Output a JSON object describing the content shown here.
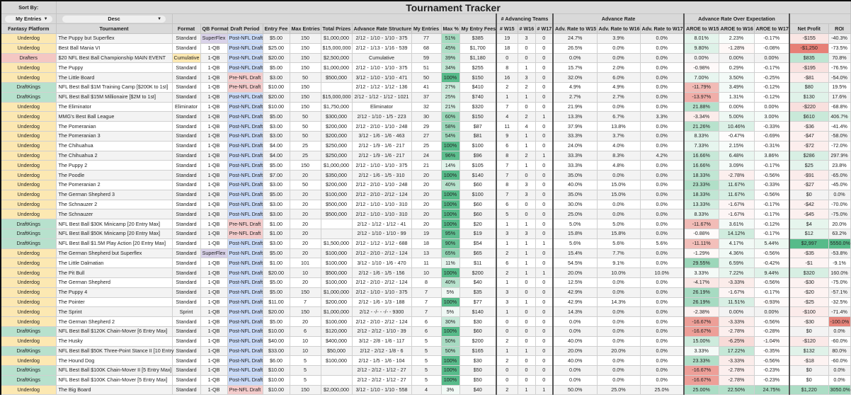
{
  "title": "Tournament Tracker",
  "sort": {
    "label": "Sort By:",
    "field": "My Entries",
    "order": "Desc"
  },
  "groups": {
    "advancing_teams": "# Advancing Teams",
    "advance_rate": "Advance Rate",
    "aroe": "Advance Rate Over Expectation"
  },
  "columns": [
    "Fantasy Platform",
    "Tournament",
    "Format",
    "QB Format",
    "Draft Period",
    "Entry Fee",
    "Max Entries",
    "Total Prizes",
    "Advance Rate Structure",
    "My Entries",
    "Max %",
    "My Entry Fees",
    "# W15",
    "# W16",
    "# W17",
    "Adv. Rate to W15",
    "Adv. Rate to W16",
    "Adv. Rate to W17",
    "AROE to W15",
    "AROE to W16",
    "AROE to W17",
    "Net Profit",
    "ROI"
  ],
  "colors": {
    "underdog": "#fce8b2",
    "draftkings": "#b7e1cd",
    "drafters": "#f4c7c3",
    "superflex": "#d9d2e9",
    "post_nfl": "#c9daf8",
    "pre_nfl": "#f4cccc",
    "cumulative": "#fce8b2",
    "positive": "#57bb8a",
    "negative": "#e67c73"
  },
  "rows": [
    [
      "Underdog",
      "The Puppy but Superflex",
      "Standard",
      "SuperFlex",
      "Post-NFL Draft",
      "$5.00",
      "150",
      "$1,000,000",
      "2/12 - 1/10 - 1/10 - 375",
      "77",
      "51%",
      "$385",
      "19",
      "3",
      "0",
      "24.7%",
      "3.9%",
      "0.0%",
      "8.01%",
      "2.23%",
      "-0.17%",
      "-$155",
      "-40.3%"
    ],
    [
      "Underdog",
      "Best Ball Mania VI",
      "Standard",
      "1-QB",
      "Post-NFL Draft",
      "$25.00",
      "150",
      "$15,000,000",
      "2/12 - 1/13 - 1/16 - 539",
      "68",
      "45%",
      "$1,700",
      "18",
      "0",
      "0",
      "26.5%",
      "0.0%",
      "0.0%",
      "9.80%",
      "-1.28%",
      "-0.08%",
      "-$1,250",
      "-73.5%"
    ],
    [
      "Drafters",
      "$20 NFL Best Ball Championship MAIN EVENT",
      "Cumulative",
      "1-QB",
      "Post-NFL Draft",
      "$20.00",
      "150",
      "$2,500,000",
      "Cumulative",
      "59",
      "39%",
      "$1,180",
      "0",
      "0",
      "0",
      "0.0%",
      "0.0%",
      "0.0%",
      "0.00%",
      "0.00%",
      "0.00%",
      "$835",
      "70.8%"
    ],
    [
      "Underdog",
      "The Puppy",
      "Standard",
      "1-QB",
      "Post-NFL Draft",
      "$5.00",
      "150",
      "$1,000,000",
      "2/12 - 1/10 - 1/10 - 375",
      "51",
      "34%",
      "$255",
      "8",
      "1",
      "0",
      "15.7%",
      "2.0%",
      "0.0%",
      "-0.98%",
      "0.29%",
      "-0.17%",
      "-$195",
      "-76.5%"
    ],
    [
      "Underdog",
      "The Little Board",
      "Standard",
      "1-QB",
      "Pre-NFL Draft",
      "$3.00",
      "50",
      "$500,000",
      "3/12 - 1/10 - 1/10 - 471",
      "50",
      "100%",
      "$150",
      "16",
      "3",
      "0",
      "32.0%",
      "6.0%",
      "0.0%",
      "7.00%",
      "3.50%",
      "-0.25%",
      "-$81",
      "-54.0%"
    ],
    [
      "DraftKings",
      "NFL Best Ball $1M Training Camp [$200K to 1st]",
      "Standard",
      "1-QB",
      "Pre-NFL Draft",
      "$10.00",
      "150",
      "",
      "2/12 - 1/12 - 1/12 - 136",
      "41",
      "27%",
      "$410",
      "2",
      "2",
      "0",
      "4.9%",
      "4.9%",
      "0.0%",
      "-11.79%",
      "3.49%",
      "-0.12%",
      "$80",
      "19.5%"
    ],
    [
      "DraftKings",
      "NFL Best Ball $15M Millionaire [$2M to 1st]",
      "Standard",
      "1-QB",
      "Post-NFL Draft",
      "$20.00",
      "150",
      "$15,000,000",
      "2/12 - 1/12 - 1/12 - 1021",
      "37",
      "25%",
      "$740",
      "1",
      "1",
      "0",
      "2.7%",
      "2.7%",
      "0.0%",
      "-13.97%",
      "1.31%",
      "-0.12%",
      "$130",
      "17.6%"
    ],
    [
      "Underdog",
      "The Eliminator",
      "Eliminator",
      "1-QB",
      "Post-NFL Draft",
      "$10.00",
      "150",
      "$1,750,000",
      "Eliminator",
      "32",
      "21%",
      "$320",
      "7",
      "0",
      "0",
      "21.9%",
      "0.0%",
      "0.0%",
      "21.88%",
      "0.00%",
      "0.00%",
      "-$220",
      "-68.8%"
    ],
    [
      "Underdog",
      "MMG's Best Ball League",
      "Standard",
      "1-QB",
      "Post-NFL Draft",
      "$5.00",
      "50",
      "$300,000",
      "2/12 - 1/10 - 1/5 - 223",
      "30",
      "60%",
      "$150",
      "4",
      "2",
      "1",
      "13.3%",
      "6.7%",
      "3.3%",
      "-3.34%",
      "5.00%",
      "3.00%",
      "$610",
      "406.7%"
    ],
    [
      "Underdog",
      "The Pomeranian",
      "Standard",
      "1-QB",
      "Post-NFL Draft",
      "$3.00",
      "50",
      "$200,000",
      "2/12 - 2/10 - 1/10 - 248",
      "29",
      "58%",
      "$87",
      "11",
      "4",
      "0",
      "37.9%",
      "13.8%",
      "0.0%",
      "21.26%",
      "10.46%",
      "-0.33%",
      "-$36",
      "-41.4%"
    ],
    [
      "Underdog",
      "The Pomeranian 3",
      "Standard",
      "1-QB",
      "Post-NFL Draft",
      "$3.00",
      "50",
      "$200,000",
      "3/12 - 1/6 - 1/6 - 463",
      "27",
      "54%",
      "$81",
      "9",
      "1",
      "0",
      "33.3%",
      "3.7%",
      "0.0%",
      "8.33%",
      "-0.47%",
      "-0.69%",
      "-$47",
      "-58.0%"
    ],
    [
      "Underdog",
      "The Chihuahua",
      "Standard",
      "1-QB",
      "Post-NFL Draft",
      "$4.00",
      "25",
      "$250,000",
      "2/12 - 1/9 - 1/6 - 217",
      "25",
      "100%",
      "$100",
      "6",
      "1",
      "0",
      "24.0%",
      "4.0%",
      "0.0%",
      "7.33%",
      "2.15%",
      "-0.31%",
      "-$72",
      "-72.0%"
    ],
    [
      "Underdog",
      "The Chihuahua 2",
      "Standard",
      "1-QB",
      "Post-NFL Draft",
      "$4.00",
      "25",
      "$250,000",
      "2/12 - 1/9 - 1/6 - 217",
      "24",
      "96%",
      "$96",
      "8",
      "2",
      "1",
      "33.3%",
      "8.3%",
      "4.2%",
      "16.66%",
      "6.48%",
      "3.86%",
      "$286",
      "297.9%"
    ],
    [
      "Underdog",
      "The Puppy 2",
      "Standard",
      "1-QB",
      "Post-NFL Draft",
      "$5.00",
      "150",
      "$1,000,000",
      "2/12 - 1/10 - 1/10 - 375",
      "21",
      "14%",
      "$105",
      "7",
      "1",
      "0",
      "33.3%",
      "4.8%",
      "0.0%",
      "16.66%",
      "3.09%",
      "-0.17%",
      "$25",
      "23.8%"
    ],
    [
      "Underdog",
      "The Poodle",
      "Standard",
      "1-QB",
      "Post-NFL Draft",
      "$7.00",
      "20",
      "$350,000",
      "2/12 - 1/6 - 1/5 - 310",
      "20",
      "100%",
      "$140",
      "7",
      "0",
      "0",
      "35.0%",
      "0.0%",
      "0.0%",
      "18.33%",
      "-2.78%",
      "-0.56%",
      "-$91",
      "-65.0%"
    ],
    [
      "Underdog",
      "The Pomeranian 2",
      "Standard",
      "1-QB",
      "Post-NFL Draft",
      "$3.00",
      "50",
      "$200,000",
      "2/12 - 2/10 - 1/10 - 248",
      "20",
      "40%",
      "$60",
      "8",
      "3",
      "0",
      "40.0%",
      "15.0%",
      "0.0%",
      "23.33%",
      "11.67%",
      "-0.33%",
      "-$27",
      "-45.0%"
    ],
    [
      "Underdog",
      "The German Shepherd 3",
      "Standard",
      "1-QB",
      "Post-NFL Draft",
      "$5.00",
      "20",
      "$100,000",
      "2/12 - 2/10 - 2/12 - 124",
      "20",
      "100%",
      "$100",
      "7",
      "3",
      "0",
      "35.0%",
      "15.0%",
      "0.0%",
      "18.33%",
      "11.67%",
      "-0.56%",
      "$0",
      "0.0%"
    ],
    [
      "Underdog",
      "The Schnauzer 2",
      "Standard",
      "1-QB",
      "Post-NFL Draft",
      "$3.00",
      "20",
      "$500,000",
      "2/12 - 1/10 - 1/10 - 310",
      "20",
      "100%",
      "$60",
      "6",
      "0",
      "0",
      "30.0%",
      "0.0%",
      "0.0%",
      "13.33%",
      "-1.67%",
      "-0.17%",
      "-$42",
      "-70.0%"
    ],
    [
      "Underdog",
      "The Schnauzer",
      "Standard",
      "1-QB",
      "Post-NFL Draft",
      "$3.00",
      "20",
      "$500,000",
      "2/12 - 1/10 - 1/10 - 310",
      "20",
      "100%",
      "$60",
      "5",
      "0",
      "0",
      "25.0%",
      "0.0%",
      "0.0%",
      "8.33%",
      "-1.67%",
      "-0.17%",
      "-$45",
      "-75.0%"
    ],
    [
      "DraftKings",
      "NFL Best Ball $30K Minicamp [20 Entry Max]",
      "Standard",
      "1-QB",
      "Pre-NFL Draft",
      "$1.00",
      "20",
      "",
      "2/12 - 1/12 - 1/12 - 41",
      "20",
      "100%",
      "$20",
      "1",
      "1",
      "0",
      "5.0%",
      "5.0%",
      "0.0%",
      "-11.67%",
      "3.61%",
      "-0.12%",
      "$4",
      "20.0%"
    ],
    [
      "DraftKings",
      "NFL Best Ball $50K Minicamp [20 Entry Max]",
      "Standard",
      "1-QB",
      "Pre-NFL Draft",
      "$1.00",
      "20",
      "",
      "2/12 - 1/10 - 1/10 - 99",
      "19",
      "95%",
      "$19",
      "3",
      "3",
      "0",
      "15.8%",
      "15.8%",
      "0.0%",
      "-0.88%",
      "14.12%",
      "-0.17%",
      "$12",
      "63.2%"
    ],
    [
      "DraftKings",
      "NFL Best Ball $1.5M Play Action [20 Entry Max]",
      "Standard",
      "1-QB",
      "Post-NFL Draft",
      "$3.00",
      "20",
      "$1,500,000",
      "2/12 - 1/12 - 1/12 - 688",
      "18",
      "90%",
      "$54",
      "1",
      "1",
      "1",
      "5.6%",
      "5.6%",
      "5.6%",
      "-11.11%",
      "4.17%",
      "5.44%",
      "$2,997",
      "5550.0%"
    ],
    [
      "Underdog",
      "The German Shepherd but Superflex",
      "Standard",
      "SuperFlex",
      "Post-NFL Draft",
      "$5.00",
      "20",
      "$100,000",
      "2/12 - 2/10 - 2/12 - 124",
      "13",
      "65%",
      "$65",
      "2",
      "1",
      "0",
      "15.4%",
      "7.7%",
      "0.0%",
      "-1.29%",
      "4.36%",
      "-0.56%",
      "-$35",
      "-53.8%"
    ],
    [
      "Underdog",
      "The Little Dalmatian",
      "Standard",
      "1-QB",
      "Post-NFL Draft",
      "$1.00",
      "101",
      "$100,000",
      "3/12 - 1/10 - 1/6 - 470",
      "11",
      "11%",
      "$11",
      "6",
      "1",
      "0",
      "54.5%",
      "9.1%",
      "0.0%",
      "29.55%",
      "6.59%",
      "-0.42%",
      "-$1",
      "-9.1%"
    ],
    [
      "Underdog",
      "The Pit Bull",
      "Standard",
      "1-QB",
      "Post-NFL Draft",
      "$20.00",
      "10",
      "$500,000",
      "2/12 - 1/6 - 1/5 - 156",
      "10",
      "100%",
      "$200",
      "2",
      "1",
      "1",
      "20.0%",
      "10.0%",
      "10.0%",
      "3.33%",
      "7.22%",
      "9.44%",
      "$320",
      "160.0%"
    ],
    [
      "Underdog",
      "The German Shepherd",
      "Standard",
      "1-QB",
      "Post-NFL Draft",
      "$5.00",
      "20",
      "$100,000",
      "2/12 - 2/10 - 2/12 - 124",
      "8",
      "40%",
      "$40",
      "1",
      "0",
      "0",
      "12.5%",
      "0.0%",
      "0.0%",
      "-4.17%",
      "-3.33%",
      "-0.56%",
      "-$30",
      "-75.0%"
    ],
    [
      "Underdog",
      "The Puppy 4",
      "Standard",
      "1-QB",
      "Post-NFL Draft",
      "$5.00",
      "150",
      "$1,000,000",
      "2/12 - 1/10 - 1/10 - 375",
      "7",
      "5%",
      "$35",
      "3",
      "0",
      "0",
      "42.9%",
      "0.0%",
      "0.0%",
      "26.19%",
      "-1.67%",
      "-0.17%",
      "-$20",
      "-57.1%"
    ],
    [
      "Underdog",
      "The Pointer",
      "Standard",
      "1-QB",
      "Post-NFL Draft",
      "$11.00",
      "7",
      "$200,000",
      "2/12 - 1/6 - 1/3 - 188",
      "7",
      "100%",
      "$77",
      "3",
      "1",
      "0",
      "42.9%",
      "14.3%",
      "0.0%",
      "26.19%",
      "11.51%",
      "-0.93%",
      "-$25",
      "-32.5%"
    ],
    [
      "Underdog",
      "The Sprint",
      "Sprint",
      "1-QB",
      "Post-NFL Draft",
      "$20.00",
      "150",
      "$1,000,000",
      "2/12 - -/- - -/- - 9300",
      "7",
      "5%",
      "$140",
      "1",
      "0",
      "0",
      "14.3%",
      "0.0%",
      "0.0%",
      "-2.38%",
      "0.00%",
      "0.00%",
      "-$100",
      "-71.4%"
    ],
    [
      "Underdog",
      "The German Shepherd 2",
      "Standard",
      "1-QB",
      "Post-NFL Draft",
      "$5.00",
      "20",
      "$100,000",
      "2/12 - 2/10 - 2/12 - 124",
      "6",
      "30%",
      "$30",
      "0",
      "0",
      "0",
      "0.0%",
      "0.0%",
      "0.0%",
      "-16.67%",
      "-3.33%",
      "-0.56%",
      "-$30",
      "-100.0%"
    ],
    [
      "DraftKings",
      "NFL Best Ball $120K Chain-Mover [6 Entry Max]",
      "Standard",
      "1-QB",
      "Post-NFL Draft",
      "$10.00",
      "6",
      "$120,000",
      "2/12 - 2/12 - 1/10 - 39",
      "6",
      "100%",
      "$60",
      "0",
      "0",
      "0",
      "0.0%",
      "0.0%",
      "0.0%",
      "-16.67%",
      "-2.78%",
      "-0.28%",
      "$0",
      "0.0%"
    ],
    [
      "Underdog",
      "The Husky",
      "Standard",
      "1-QB",
      "Post-NFL Draft",
      "$40.00",
      "10",
      "$400,000",
      "3/12 - 2/8 - 1/6 - 117",
      "5",
      "50%",
      "$200",
      "2",
      "0",
      "0",
      "40.0%",
      "0.0%",
      "0.0%",
      "15.00%",
      "-6.25%",
      "-1.04%",
      "-$120",
      "-60.0%"
    ],
    [
      "DraftKings",
      "NFL Best Ball $50K Three-Point Stance II [10 Entry",
      "Standard",
      "1-QB",
      "Post-NFL Draft",
      "$33.00",
      "10",
      "$50,000",
      "2/12 - 2/12 - 1/8 - 6",
      "5",
      "50%",
      "$165",
      "1",
      "1",
      "0",
      "20.0%",
      "20.0%",
      "0.0%",
      "3.33%",
      "17.22%",
      "-0.35%",
      "$132",
      "80.0%"
    ],
    [
      "Underdog",
      "The Hound Dog",
      "Standard",
      "1-QB",
      "Post-NFL Draft",
      "$6.00",
      "5",
      "$100,000",
      "2/12 - 1/5 - 1/6 - 104",
      "5",
      "100%",
      "$30",
      "2",
      "0",
      "0",
      "40.0%",
      "0.0%",
      "0.0%",
      "23.33%",
      "-3.33%",
      "-0.56%",
      "-$18",
      "-60.0%"
    ],
    [
      "DraftKings",
      "NFL Best Ball $100K Chain-Mover II [5 Entry Max]",
      "Standard",
      "1-QB",
      "Post-NFL Draft",
      "$10.00",
      "5",
      "",
      "2/12 - 2/12 - 1/12 - 27",
      "5",
      "100%",
      "$50",
      "0",
      "0",
      "0",
      "0.0%",
      "0.0%",
      "0.0%",
      "-16.67%",
      "-2.78%",
      "-0.23%",
      "$0",
      "0.0%"
    ],
    [
      "DraftKings",
      "NFL Best Ball $100K Chain-Mover [5 Entry Max]",
      "Standard",
      "1-QB",
      "Post-NFL Draft",
      "$10.00",
      "5",
      "",
      "2/12 - 2/12 - 1/12 - 27",
      "5",
      "100%",
      "$50",
      "0",
      "0",
      "0",
      "0.0%",
      "0.0%",
      "0.0%",
      "-16.67%",
      "-2.78%",
      "-0.23%",
      "$0",
      "0.0%"
    ],
    [
      "Underdog",
      "The Big Board",
      "Standard",
      "1-QB",
      "Pre-NFL Draft",
      "$10.00",
      "150",
      "$2,000,000",
      "3/12 - 1/10 - 1/10 - 558",
      "4",
      "3%",
      "$40",
      "2",
      "1",
      "1",
      "50.0%",
      "25.0%",
      "25.0%",
      "25.00%",
      "22.50%",
      "24.75%",
      "$1,220",
      "3050.0%"
    ]
  ]
}
